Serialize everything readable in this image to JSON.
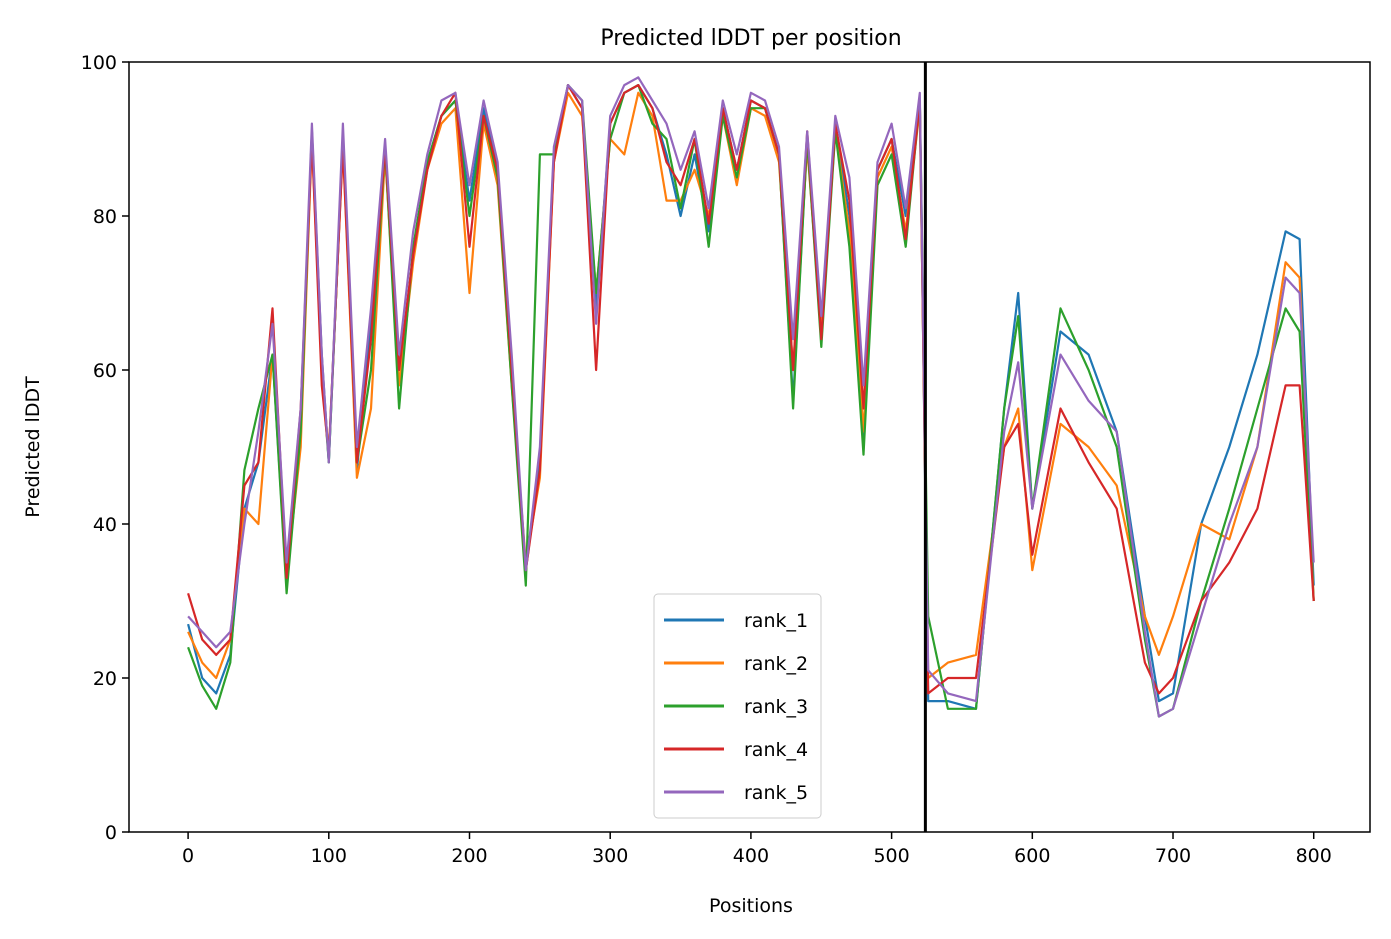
{
  "chart_data": {
    "type": "line",
    "title": "Predicted lDDT per position",
    "xlabel": "Positions",
    "ylabel": "Predicted lDDT",
    "xlim": [
      -42,
      840
    ],
    "ylim": [
      0,
      100
    ],
    "xticks": [
      0,
      100,
      200,
      300,
      400,
      500,
      600,
      700,
      800
    ],
    "yticks": [
      0,
      20,
      40,
      60,
      80,
      100
    ],
    "grid": false,
    "legend_position": "lower center",
    "chain_break": 524,
    "x": [
      0,
      10,
      20,
      30,
      40,
      50,
      60,
      70,
      80,
      88,
      95,
      100,
      110,
      120,
      130,
      140,
      150,
      160,
      170,
      180,
      190,
      200,
      210,
      220,
      230,
      240,
      250,
      260,
      270,
      280,
      290,
      300,
      310,
      320,
      330,
      340,
      350,
      360,
      370,
      380,
      390,
      400,
      410,
      420,
      430,
      440,
      450,
      460,
      470,
      480,
      490,
      500,
      510,
      520,
      526,
      540,
      560,
      580,
      590,
      600,
      620,
      640,
      660,
      680,
      690,
      700,
      720,
      740,
      760,
      780,
      790,
      800
    ],
    "series": [
      {
        "name": "rank_1",
        "color": "#1f77b4",
        "values": [
          27,
          20,
          18,
          23,
          42,
          48,
          62,
          32,
          52,
          91,
          62,
          48,
          90,
          47,
          66,
          88,
          60,
          75,
          87,
          93,
          95,
          82,
          94,
          86,
          60,
          34,
          48,
          88,
          97,
          94,
          68,
          92,
          96,
          97,
          94,
          88,
          80,
          88,
          78,
          94,
          86,
          95,
          94,
          88,
          56,
          90,
          64,
          92,
          80,
          50,
          86,
          90,
          80,
          95,
          17,
          17,
          16,
          55,
          70,
          42,
          65,
          62,
          52,
          28,
          17,
          18,
          40,
          50,
          62,
          78,
          77,
          32
        ]
      },
      {
        "name": "rank_2",
        "color": "#ff7f0e",
        "values": [
          26,
          22,
          20,
          25,
          42,
          40,
          62,
          33,
          50,
          90,
          60,
          49,
          89,
          46,
          55,
          88,
          58,
          74,
          86,
          92,
          94,
          70,
          92,
          84,
          58,
          35,
          46,
          87,
          96,
          93,
          70,
          90,
          88,
          96,
          93,
          82,
          82,
          86,
          80,
          93,
          84,
          94,
          93,
          87,
          60,
          89,
          65,
          91,
          78,
          52,
          85,
          89,
          78,
          94,
          20,
          22,
          23,
          50,
          55,
          34,
          53,
          50,
          45,
          28,
          23,
          28,
          40,
          38,
          50,
          74,
          72,
          30
        ]
      },
      {
        "name": "rank_3",
        "color": "#2ca02c",
        "values": [
          24,
          19,
          16,
          22,
          47,
          55,
          62,
          31,
          52,
          91,
          60,
          48,
          90,
          48,
          60,
          89,
          55,
          76,
          87,
          93,
          95,
          80,
          93,
          85,
          58,
          32,
          88,
          88,
          97,
          95,
          70,
          90,
          96,
          97,
          92,
          90,
          81,
          90,
          76,
          93,
          85,
          94,
          94,
          88,
          55,
          90,
          63,
          91,
          76,
          49,
          84,
          88,
          76,
          95,
          28,
          16,
          16,
          55,
          67,
          42,
          68,
          60,
          50,
          25,
          15,
          16,
          30,
          42,
          55,
          68,
          65,
          30
        ]
      },
      {
        "name": "rank_4",
        "color": "#d62728",
        "values": [
          31,
          25,
          23,
          25,
          45,
          48,
          68,
          33,
          55,
          90,
          58,
          49,
          89,
          48,
          64,
          89,
          60,
          75,
          86,
          93,
          96,
          76,
          93,
          86,
          60,
          34,
          47,
          87,
          97,
          94,
          60,
          92,
          96,
          97,
          94,
          87,
          84,
          90,
          79,
          94,
          86,
          95,
          94,
          88,
          60,
          91,
          64,
          92,
          82,
          55,
          86,
          90,
          77,
          95,
          18,
          20,
          20,
          50,
          53,
          36,
          55,
          48,
          42,
          22,
          18,
          20,
          30,
          35,
          42,
          58,
          58,
          30
        ]
      },
      {
        "name": "rank_5",
        "color": "#9467bd",
        "values": [
          28,
          26,
          24,
          26,
          40,
          52,
          66,
          35,
          55,
          92,
          62,
          48,
          92,
          50,
          68,
          90,
          62,
          78,
          88,
          95,
          96,
          84,
          95,
          87,
          62,
          34,
          50,
          89,
          97,
          95,
          66,
          93,
          97,
          98,
          95,
          92,
          86,
          91,
          81,
          95,
          88,
          96,
          95,
          89,
          64,
          91,
          67,
          93,
          85,
          58,
          87,
          92,
          81,
          96,
          21,
          18,
          17,
          52,
          61,
          42,
          62,
          56,
          52,
          26,
          15,
          16,
          28,
          40,
          50,
          72,
          70,
          35
        ]
      }
    ]
  }
}
